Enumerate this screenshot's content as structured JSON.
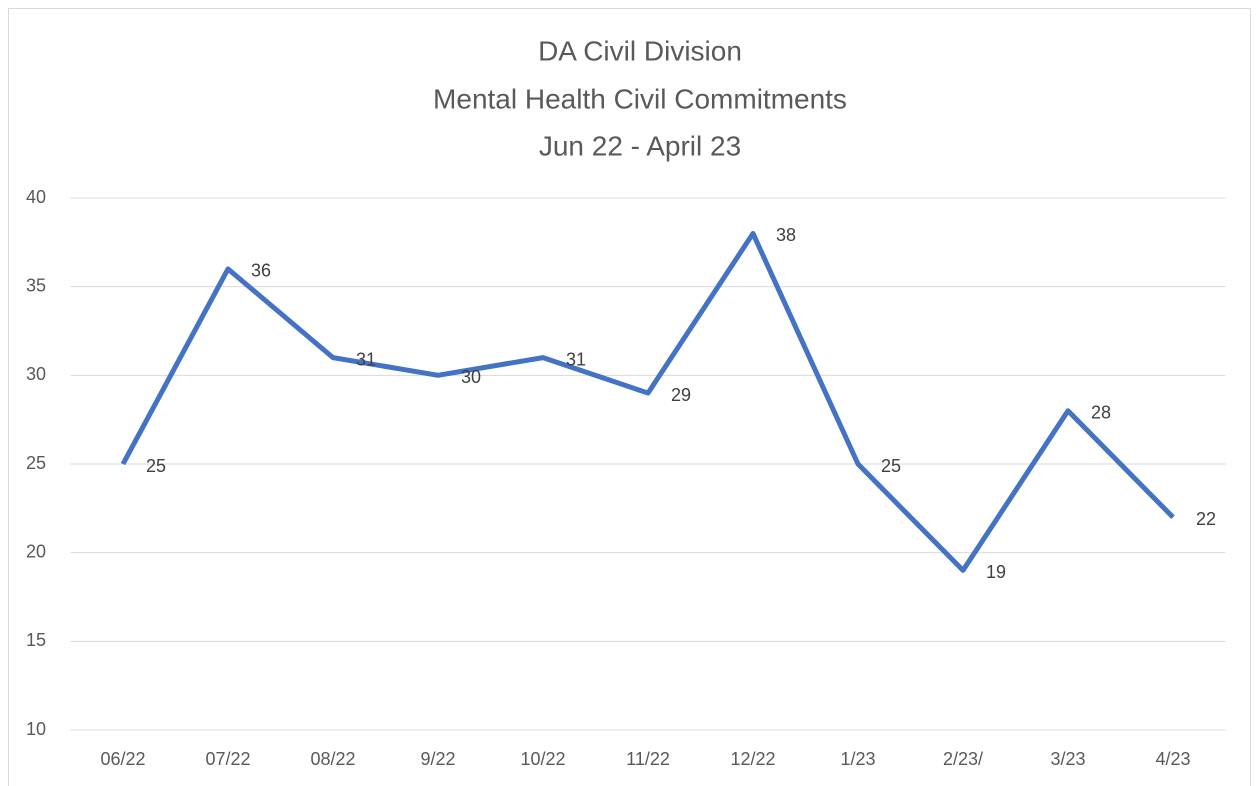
{
  "chart_data": {
    "type": "line",
    "title": [
      "DA Civil Division",
      "Mental Health Civil Commitments",
      "Jun 22 - April 23"
    ],
    "categories": [
      "06/22",
      "07/22",
      "08/22",
      "9/22",
      "10/22",
      "11/22",
      "12/22",
      "1/23",
      "2/23/",
      "3/23",
      "4/23"
    ],
    "series": [
      {
        "color": "#4472c4",
        "values": [
          25,
          36,
          31,
          30,
          31,
          29,
          38,
          25,
          19,
          28,
          22
        ]
      }
    ],
    "ylim": [
      10,
      40
    ],
    "yticks": [
      10,
      15,
      20,
      25,
      30,
      35,
      40
    ],
    "grid": true
  }
}
